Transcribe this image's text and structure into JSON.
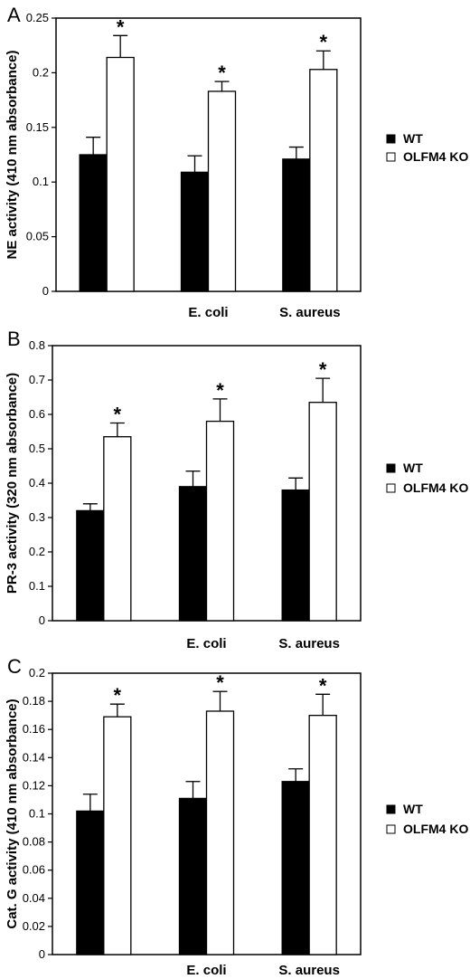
{
  "chart_data": [
    {
      "type": "bar",
      "panel": "A",
      "ylabel": "NE activity (410 nm absorbance)",
      "ylim": [
        0,
        0.25
      ],
      "yticks": [
        0,
        0.05,
        0.1,
        0.15,
        0.2,
        0.25
      ],
      "ytick_labels": [
        "0",
        "0.05",
        "0.1",
        "0.15",
        "0.2",
        "0.25"
      ],
      "categories": [
        "",
        "E. coli",
        "S. aureus"
      ],
      "series": [
        {
          "name": "WT",
          "color": "#000000",
          "values": [
            0.125,
            0.109,
            0.121
          ],
          "errors": [
            0.016,
            0.015,
            0.011
          ]
        },
        {
          "name": "OLFM4 KO",
          "color": "#ffffff",
          "values": [
            0.214,
            0.183,
            0.203
          ],
          "errors": [
            0.02,
            0.009,
            0.017
          ]
        }
      ],
      "annotations": [
        "*",
        "*",
        "*"
      ],
      "legend": "right"
    },
    {
      "type": "bar",
      "panel": "B",
      "ylabel": "PR-3 activity (320 nm absorbance)",
      "ylim": [
        0,
        0.8
      ],
      "yticks": [
        0,
        0.1,
        0.2,
        0.3,
        0.4,
        0.5,
        0.6,
        0.7,
        0.8
      ],
      "ytick_labels": [
        "0",
        "0.1",
        "0.2",
        "0.3",
        "0.4",
        "0.5",
        "0.6",
        "0.7",
        "0.8"
      ],
      "categories": [
        "",
        "E. coli",
        "S. aureus"
      ],
      "series": [
        {
          "name": "WT",
          "color": "#000000",
          "values": [
            0.32,
            0.39,
            0.38
          ],
          "errors": [
            0.02,
            0.045,
            0.035
          ]
        },
        {
          "name": "OLFM4 KO",
          "color": "#ffffff",
          "values": [
            0.535,
            0.58,
            0.635
          ],
          "errors": [
            0.04,
            0.065,
            0.07
          ]
        }
      ],
      "annotations": [
        "*",
        "*",
        "*"
      ],
      "legend": "right"
    },
    {
      "type": "bar",
      "panel": "C",
      "ylabel": "Cat. G activity (410 nm absorbance)",
      "ylim": [
        0,
        0.2
      ],
      "yticks": [
        0,
        0.02,
        0.04,
        0.06,
        0.08,
        0.1,
        0.12,
        0.14,
        0.16,
        0.18,
        0.2
      ],
      "ytick_labels": [
        "0",
        "0.02",
        "0.04",
        "0.06",
        "0.08",
        "0.1",
        "0.12",
        "0.14",
        "0.16",
        "0.18",
        "0.2"
      ],
      "categories": [
        "",
        "E. coli",
        "S. aureus"
      ],
      "series": [
        {
          "name": "WT",
          "color": "#000000",
          "values": [
            0.102,
            0.111,
            0.123
          ],
          "errors": [
            0.012,
            0.012,
            0.009
          ]
        },
        {
          "name": "OLFM4 KO",
          "color": "#ffffff",
          "values": [
            0.169,
            0.173,
            0.17
          ],
          "errors": [
            0.009,
            0.014,
            0.015
          ]
        }
      ],
      "annotations": [
        "*",
        "*",
        "*"
      ],
      "legend": "right"
    }
  ]
}
